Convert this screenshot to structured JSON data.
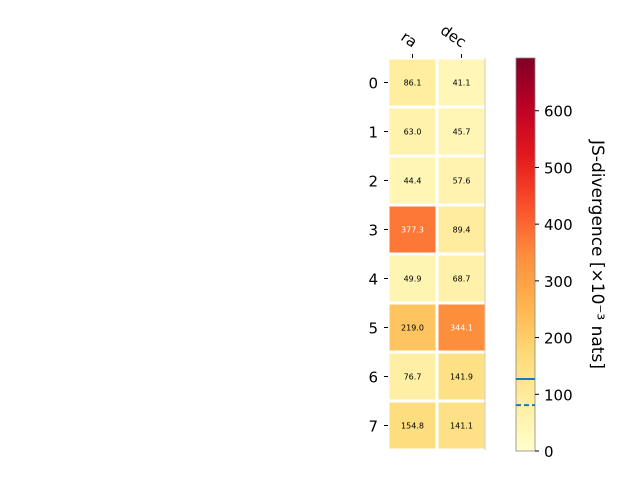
{
  "chart_data": {
    "type": "heatmap",
    "columns": [
      "ra",
      "dec"
    ],
    "rows": [
      "0",
      "1",
      "2",
      "3",
      "4",
      "5",
      "6",
      "7"
    ],
    "values": [
      [
        86.1,
        41.1
      ],
      [
        63.0,
        45.7
      ],
      [
        44.4,
        57.6
      ],
      [
        377.3,
        89.4
      ],
      [
        49.9,
        68.7
      ],
      [
        219.0,
        344.1
      ],
      [
        76.7,
        141.9
      ],
      [
        154.8,
        141.1
      ]
    ],
    "value_labels": [
      [
        "86.1",
        "41.1"
      ],
      [
        "63.0",
        "45.7"
      ],
      [
        "44.4",
        "57.6"
      ],
      [
        "377.3",
        "89.4"
      ],
      [
        "49.9",
        "68.7"
      ],
      [
        "219.0",
        "344.1"
      ],
      [
        "76.7",
        "141.9"
      ],
      [
        "154.8",
        "141.1"
      ]
    ],
    "colormap": "YlOrRd",
    "colorbar": {
      "label": "JS-divergence [×10⁻³ nats]",
      "range": [
        0,
        693
      ],
      "ticks": [
        0,
        100,
        200,
        300,
        400,
        500,
        600
      ],
      "tick_labels": [
        "0",
        "100",
        "200",
        "300",
        "400",
        "500",
        "600"
      ],
      "reference_lines": [
        {
          "value": 127,
          "style": "solid",
          "color": "#1f77b4"
        },
        {
          "value": 81,
          "style": "dashed",
          "color": "#1f77b4"
        }
      ]
    },
    "grid": false,
    "legend": "none"
  }
}
